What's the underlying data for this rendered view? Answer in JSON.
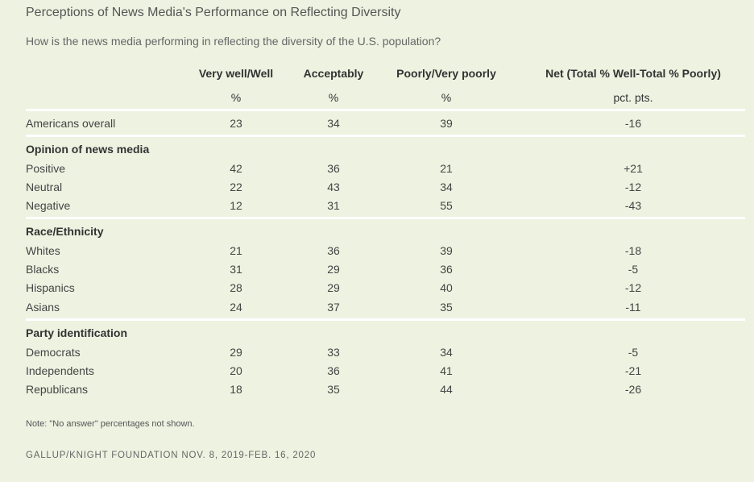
{
  "title": "Perceptions of News Media's Performance on Reflecting Diversity",
  "subtitle": "How is the news media performing in reflecting the diversity of the U.S. population?",
  "note": "Note: \"No answer\" percentages not shown.",
  "source": "GALLUP/KNIGHT FOUNDATION NOV. 8, 2019-FEB. 16, 2020",
  "colors": {
    "background": "#eef2e1",
    "rule": "#ffffff"
  },
  "chart_data": {
    "type": "table",
    "columns": [
      {
        "label": "Very well/Well",
        "unit": "%"
      },
      {
        "label": "Acceptably",
        "unit": "%"
      },
      {
        "label": "Poorly/Very poorly",
        "unit": "%"
      },
      {
        "label": "Net (Total % Well-Total % Poorly)",
        "unit": "pct. pts."
      }
    ],
    "overall": {
      "label": "Americans overall",
      "values": [
        "23",
        "34",
        "39",
        "-16"
      ]
    },
    "groups": [
      {
        "label": "Opinion of news media",
        "rows": [
          {
            "label": "Positive",
            "values": [
              "42",
              "36",
              "21",
              "+21"
            ]
          },
          {
            "label": "Neutral",
            "values": [
              "22",
              "43",
              "34",
              "-12"
            ]
          },
          {
            "label": "Negative",
            "values": [
              "12",
              "31",
              "55",
              "-43"
            ]
          }
        ]
      },
      {
        "label": "Race/Ethnicity",
        "rows": [
          {
            "label": "Whites",
            "values": [
              "21",
              "36",
              "39",
              "-18"
            ]
          },
          {
            "label": "Blacks",
            "values": [
              "31",
              "29",
              "36",
              "-5"
            ]
          },
          {
            "label": "Hispanics",
            "values": [
              "28",
              "29",
              "40",
              "-12"
            ]
          },
          {
            "label": "Asians",
            "values": [
              "24",
              "37",
              "35",
              "-11"
            ]
          }
        ]
      },
      {
        "label": "Party identification",
        "rows": [
          {
            "label": "Democrats",
            "values": [
              "29",
              "33",
              "34",
              "-5"
            ]
          },
          {
            "label": "Independents",
            "values": [
              "20",
              "36",
              "41",
              "-21"
            ]
          },
          {
            "label": "Republicans",
            "values": [
              "18",
              "35",
              "44",
              "-26"
            ]
          }
        ]
      }
    ]
  }
}
